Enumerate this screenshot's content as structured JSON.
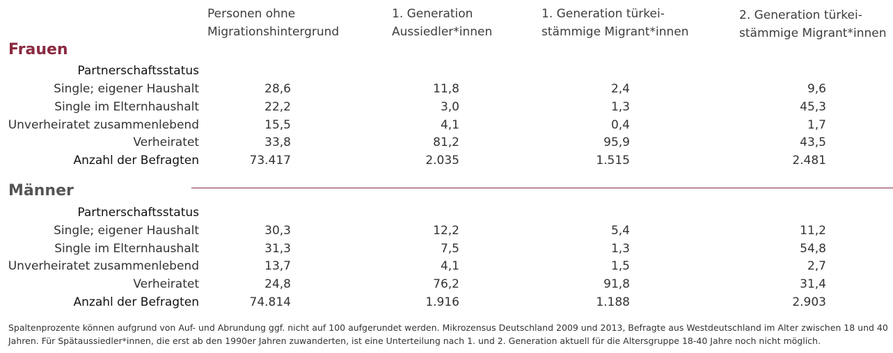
{
  "columns": [
    {
      "line1": "Personen ohne",
      "line2": "Migrationshintergrund"
    },
    {
      "line1": "1. Generation",
      "line2": "Aussiedler*innen"
    },
    {
      "line1": "1. Generation türkei-",
      "line2": "stämmige Migrant*innen"
    },
    {
      "line1": "2. Generation türkei-",
      "line2": "stämmige Migrant*innen"
    }
  ],
  "sections": [
    {
      "title": "Frauen",
      "subheading": "Partnerschaftsstatus",
      "rows": [
        {
          "label": "Single; eigener Haushalt",
          "values": [
            "28,6",
            "11,8",
            "2,4",
            "9,6"
          ]
        },
        {
          "label": "Single im Elternhaushalt",
          "values": [
            "22,2",
            "3,0",
            "1,3",
            "45,3"
          ]
        },
        {
          "label": "Unverheiratet zusammenlebend",
          "values": [
            "15,5",
            "4,1",
            "0,4",
            "1,7"
          ]
        },
        {
          "label": "Verheiratet",
          "values": [
            "33,8",
            "81,2",
            "95,9",
            "43,5"
          ]
        },
        {
          "label": "Anzahl der Befragten",
          "values": [
            "73.417",
            "2.035",
            "1.515",
            "2.481"
          ]
        }
      ]
    },
    {
      "title": "Männer",
      "subheading": "Partnerschaftsstatus",
      "rows": [
        {
          "label": "Single; eigener Haushalt",
          "values": [
            "30,3",
            "12,2",
            "5,4",
            "11,2"
          ]
        },
        {
          "label": "Single im Elternhaushalt",
          "values": [
            "31,3",
            "7,5",
            "1,3",
            "54,8"
          ]
        },
        {
          "label": "Unverheiratet zusammenlebend",
          "values": [
            "13,7",
            "4,1",
            "1,5",
            "2,7"
          ]
        },
        {
          "label": "Verheiratet",
          "values": [
            "24,8",
            "76,2",
            "91,8",
            "31,4"
          ]
        },
        {
          "label": "Anzahl der Befragten",
          "values": [
            "74.814",
            "1.916",
            "1.188",
            "2.903"
          ]
        }
      ]
    }
  ],
  "footnote": "Spaltenprozente können aufgrund von Auf- und Abrundung ggf. nicht auf 100 aufgerundet werden. Mikrozensus Deutschland 2009 und 2013, Befragte aus Westdeutschland im Alter zwischen 18 und 40 Jahren. Für Spätaussiedler*innen, die erst ab den 1990er Jahren zuwanderten, ist eine Unterteilung nach 1. und 2. Generation aktuell für die Altersgruppe 18-40 Jahre noch nicht möglich."
}
